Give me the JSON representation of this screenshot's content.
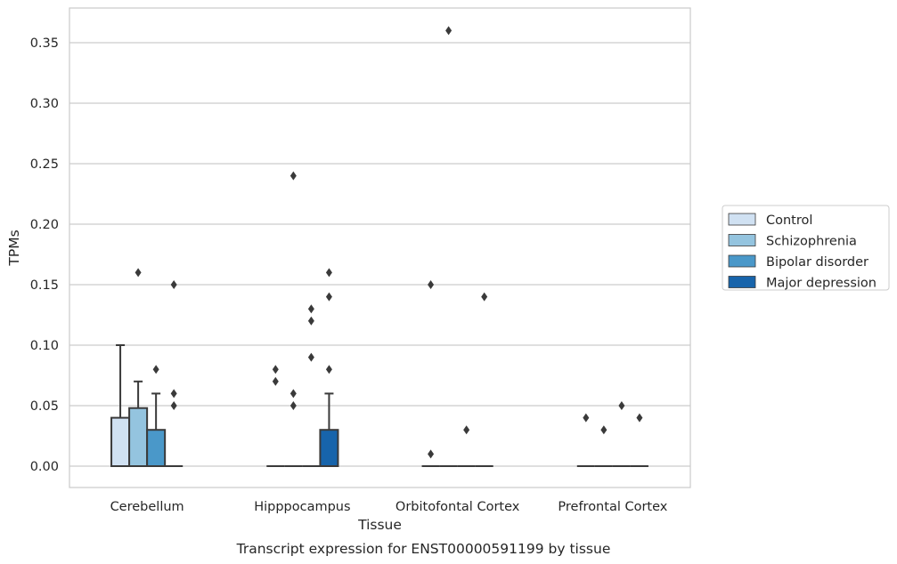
{
  "chart_data": {
    "type": "box",
    "caption": "Transcript expression for ENST00000591199 by tissue",
    "xlabel": "Tissue",
    "ylabel": "TPMs",
    "ylim": [
      -0.018,
      0.378
    ],
    "yticks": [
      0.0,
      0.05,
      0.1,
      0.15,
      0.2,
      0.25,
      0.3,
      0.35
    ],
    "ytick_labels": [
      "0.00",
      "0.05",
      "0.10",
      "0.15",
      "0.20",
      "0.25",
      "0.30",
      "0.35"
    ],
    "grid": true,
    "legend_position": "right",
    "categories": [
      "Cerebellum",
      "Hipppocampus",
      "Orbitofontal Cortex",
      "Prefrontal Cortex"
    ],
    "series": [
      {
        "name": "Control",
        "color": "#d0e1f2",
        "boxes": [
          {
            "q1": 0.0,
            "median": 0.0,
            "q3": 0.04,
            "whisker_low": 0.0,
            "whisker_high": 0.1,
            "outliers": []
          },
          {
            "q1": 0.0,
            "median": 0.0,
            "q3": 0.0,
            "whisker_low": 0.0,
            "whisker_high": 0.0,
            "outliers": [
              0.07,
              0.08
            ]
          },
          {
            "q1": 0.0,
            "median": 0.0,
            "q3": 0.0,
            "whisker_low": 0.0,
            "whisker_high": 0.0,
            "outliers": [
              0.01,
              0.15
            ]
          },
          {
            "q1": 0.0,
            "median": 0.0,
            "q3": 0.0,
            "whisker_low": 0.0,
            "whisker_high": 0.0,
            "outliers": [
              0.04
            ]
          }
        ]
      },
      {
        "name": "Schizophrenia",
        "color": "#94c4df",
        "boxes": [
          {
            "q1": 0.0,
            "median": 0.0,
            "q3": 0.048,
            "whisker_low": 0.0,
            "whisker_high": 0.07,
            "outliers": [
              0.16
            ]
          },
          {
            "q1": 0.0,
            "median": 0.0,
            "q3": 0.0,
            "whisker_low": 0.0,
            "whisker_high": 0.0,
            "outliers": [
              0.05,
              0.06,
              0.24
            ]
          },
          {
            "q1": 0.0,
            "median": 0.0,
            "q3": 0.0,
            "whisker_low": 0.0,
            "whisker_high": 0.0,
            "outliers": [
              0.36
            ]
          },
          {
            "q1": 0.0,
            "median": 0.0,
            "q3": 0.0,
            "whisker_low": 0.0,
            "whisker_high": 0.0,
            "outliers": [
              0.03
            ]
          }
        ]
      },
      {
        "name": "Bipolar disorder",
        "color": "#4a98c9",
        "boxes": [
          {
            "q1": 0.0,
            "median": 0.0,
            "q3": 0.03,
            "whisker_low": 0.0,
            "whisker_high": 0.06,
            "outliers": [
              0.08
            ]
          },
          {
            "q1": 0.0,
            "median": 0.0,
            "q3": 0.0,
            "whisker_low": 0.0,
            "whisker_high": 0.0,
            "outliers": [
              0.09,
              0.12,
              0.13
            ]
          },
          {
            "q1": 0.0,
            "median": 0.0,
            "q3": 0.0,
            "whisker_low": 0.0,
            "whisker_high": 0.0,
            "outliers": [
              0.03
            ]
          },
          {
            "q1": 0.0,
            "median": 0.0,
            "q3": 0.0,
            "whisker_low": 0.0,
            "whisker_high": 0.0,
            "outliers": [
              0.05
            ]
          }
        ]
      },
      {
        "name": "Major depression",
        "color": "#1764ab",
        "boxes": [
          {
            "q1": 0.0,
            "median": 0.0,
            "q3": 0.0,
            "whisker_low": 0.0,
            "whisker_high": 0.0,
            "outliers": [
              0.05,
              0.06,
              0.15
            ]
          },
          {
            "q1": 0.0,
            "median": 0.0,
            "q3": 0.03,
            "whisker_low": 0.0,
            "whisker_high": 0.06,
            "outliers": [
              0.08,
              0.14,
              0.16
            ]
          },
          {
            "q1": 0.0,
            "median": 0.0,
            "q3": 0.0,
            "whisker_low": 0.0,
            "whisker_high": 0.0,
            "outliers": [
              0.14
            ]
          },
          {
            "q1": 0.0,
            "median": 0.0,
            "q3": 0.0,
            "whisker_low": 0.0,
            "whisker_high": 0.0,
            "outliers": [
              0.04
            ]
          }
        ]
      }
    ]
  }
}
